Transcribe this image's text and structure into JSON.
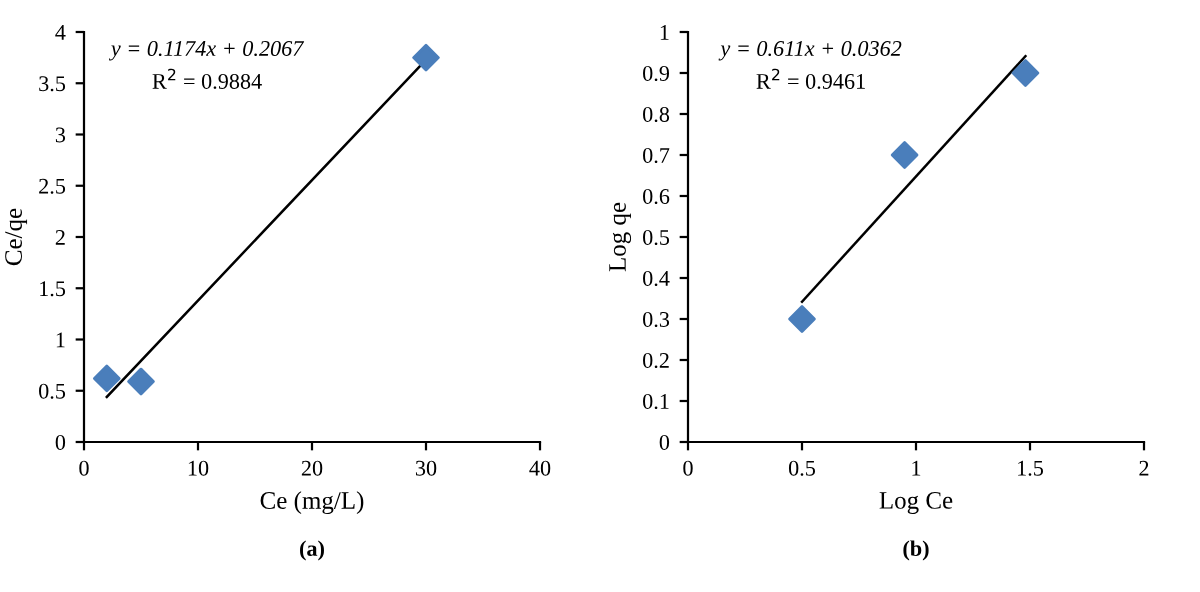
{
  "chart_data": [
    {
      "type": "scatter",
      "xlabel": "Ce (mg/L)",
      "ylabel": "Ce/qe",
      "xlim": [
        0,
        40
      ],
      "ylim": [
        0,
        4
      ],
      "xticks": [
        0,
        10,
        20,
        30,
        40
      ],
      "yticks": [
        0,
        0.5,
        1,
        1.5,
        2,
        2.5,
        3,
        3.5,
        4
      ],
      "grid": false,
      "annotations": [
        "y = 0.1174x + 0.2067",
        "R$^{2}$ = 0.9884",
        "(a)"
      ],
      "series": [
        {
          "color": "#4a7ebb",
          "marker": "diamond",
          "x": [
            2,
            5,
            30
          ],
          "values": [
            0.62,
            0.59,
            3.75
          ]
        },
        {
          "type": "line",
          "color": "#000000",
          "x": [
            2,
            30
          ],
          "values": [
            0.44,
            3.73
          ]
        }
      ]
    },
    {
      "type": "scatter",
      "xlabel": "Log Ce",
      "ylabel": "Log qe",
      "xlim": [
        0,
        2
      ],
      "ylim": [
        0,
        1
      ],
      "xticks": [
        0,
        0.5,
        1,
        1.5,
        2
      ],
      "yticks": [
        0,
        0.1,
        0.2,
        0.3,
        0.4,
        0.5,
        0.6,
        0.7,
        0.8,
        0.9,
        1
      ],
      "grid": false,
      "annotations": [
        "y = 0.611x + 0.0362",
        "R$^{2}$ = 0.9461",
        "(b)"
      ],
      "series": [
        {
          "color": "#4a7ebb",
          "marker": "diamond",
          "x": [
            0.5,
            0.95,
            1.48
          ],
          "values": [
            0.3,
            0.7,
            0.9
          ]
        },
        {
          "type": "line",
          "color": "#000000",
          "x": [
            0.5,
            1.48
          ],
          "values": [
            0.342,
            0.941
          ]
        }
      ]
    }
  ]
}
